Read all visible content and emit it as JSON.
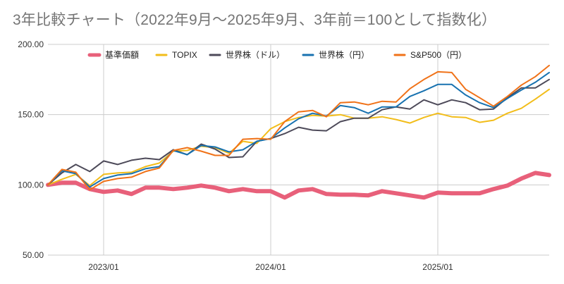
{
  "chart_data": {
    "type": "line",
    "title": "3年比較チャート（2022年9月〜2025年9月、3年前＝100として指数化）",
    "xlabel": "",
    "ylabel": "",
    "ylim": [
      50,
      200
    ],
    "yticks": [
      "50.00",
      "100.00",
      "150.00",
      "200.00"
    ],
    "x_tick_labels": [
      {
        "label": "2023/01",
        "month_index": 4
      },
      {
        "label": "2024/01",
        "month_index": 16
      },
      {
        "label": "2025/01",
        "month_index": 28
      }
    ],
    "x_months": 36,
    "grid": true,
    "legend_position": "top",
    "series": [
      {
        "name": "基準価額",
        "color": "#e8607a",
        "values": [
          100,
          101.5,
          101.5,
          97,
          95,
          96,
          93.5,
          98,
          98,
          97,
          98,
          99.5,
          98,
          95.5,
          97,
          95.5,
          95.5,
          91,
          96,
          97,
          93.5,
          93,
          93,
          92.5,
          95.5,
          94,
          92.5,
          91,
          94.5,
          94,
          94,
          94,
          97,
          99.5,
          104.5,
          108.5,
          107
        ]
      },
      {
        "name": "TOPIX",
        "color": "#f2bd1a",
        "values": [
          100,
          104,
          107.5,
          99.5,
          107.5,
          108.5,
          109,
          113,
          115.5,
          124,
          124.5,
          127.5,
          126.5,
          122.5,
          131,
          129.5,
          140,
          145,
          148,
          149.5,
          149,
          150,
          147.5,
          147.5,
          148.5,
          146.5,
          144,
          148,
          151,
          148.5,
          148,
          144.5,
          146,
          151,
          154.5,
          161,
          168
        ]
      },
      {
        "name": "世界株（ドル）",
        "color": "#4d4a59",
        "values": [
          100,
          108.5,
          114.5,
          109.5,
          117,
          114.5,
          117.5,
          119,
          118,
          125,
          121.5,
          129,
          125.5,
          119.5,
          120,
          131,
          133,
          136.5,
          141,
          139,
          138.5,
          145,
          147.5,
          147.5,
          153.5,
          155.5,
          154,
          160.5,
          157,
          160.5,
          158.5,
          153.5,
          154,
          162,
          169,
          169,
          175
        ]
      },
      {
        "name": "世界株（円）",
        "color": "#1872b0",
        "values": [
          100,
          110,
          108,
          98.5,
          104.5,
          107,
          108,
          111.5,
          113,
          124.5,
          121.5,
          128,
          127,
          123.5,
          125,
          131,
          133,
          140.5,
          147,
          151,
          149,
          156.5,
          155,
          151,
          155.5,
          155.5,
          163,
          167,
          171.5,
          171.5,
          164,
          158.5,
          155,
          161.5,
          167.5,
          173,
          180
        ]
      },
      {
        "name": "S&P500（円）",
        "color": "#f07218",
        "values": [
          100,
          111,
          109,
          96.5,
          102.5,
          104.5,
          105.5,
          109.5,
          112,
          124.5,
          126.5,
          124,
          121,
          121,
          132.5,
          133,
          132.5,
          145,
          152,
          153,
          148.5,
          158.5,
          159,
          157,
          159.5,
          159,
          168.5,
          175,
          180.5,
          180,
          168,
          162,
          156,
          163,
          171,
          177,
          185
        ]
      }
    ]
  }
}
